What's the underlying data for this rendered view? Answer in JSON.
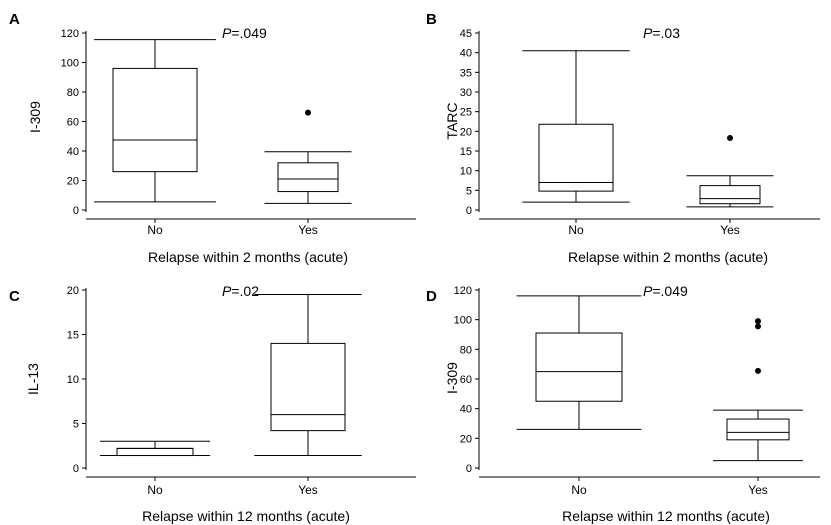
{
  "chart_data": [
    {
      "type": "box",
      "panel_label": "A",
      "title": "",
      "xlabel": "Relapse within 2 months (acute)",
      "ylabel": "I-309",
      "ylim": [
        0,
        120
      ],
      "yticks": [
        0,
        20,
        40,
        60,
        80,
        100,
        120
      ],
      "p_prefix": "P",
      "p_value": "=.049",
      "categories": [
        "No",
        "Yes"
      ],
      "boxes": [
        {
          "category": "No",
          "whisker_low": 5.5,
          "q1": 26,
          "median": 47.5,
          "q3": 96,
          "whisker_high": 115.5,
          "outliers": []
        },
        {
          "category": "Yes",
          "whisker_low": 4.5,
          "q1": 12.5,
          "median": 21,
          "q3": 32,
          "whisker_high": 39.5,
          "outliers": [
            66
          ]
        }
      ]
    },
    {
      "type": "box",
      "panel_label": "B",
      "title": "",
      "xlabel": "Relapse within 2 months (acute)",
      "ylabel": "TARC",
      "ylim": [
        0,
        45
      ],
      "yticks": [
        0,
        5,
        10,
        15,
        20,
        25,
        30,
        35,
        40,
        45
      ],
      "p_prefix": "P",
      "p_value": "=.03",
      "categories": [
        "No",
        "Yes"
      ],
      "boxes": [
        {
          "category": "No",
          "whisker_low": 2,
          "q1": 4.8,
          "median": 7,
          "q3": 21.8,
          "whisker_high": 40.5,
          "outliers": []
        },
        {
          "category": "Yes",
          "whisker_low": 0.8,
          "q1": 1.6,
          "median": 2.9,
          "q3": 6.2,
          "whisker_high": 8.7,
          "outliers": [
            18.3
          ]
        }
      ]
    },
    {
      "type": "box",
      "panel_label": "C",
      "title": "",
      "xlabel": "Relapse within 12 months (acute)",
      "ylabel": "IL-13",
      "ylim": [
        0,
        20
      ],
      "yticks": [
        0,
        5,
        10,
        15,
        20
      ],
      "p_prefix": "P",
      "p_value": "=.02",
      "categories": [
        "No",
        "Yes"
      ],
      "boxes": [
        {
          "category": "No",
          "whisker_low": 1.4,
          "q1": 1.4,
          "median": 2.2,
          "q3": 2.2,
          "whisker_high": 3.0,
          "outliers": []
        },
        {
          "category": "Yes",
          "whisker_low": 1.4,
          "q1": 4.2,
          "median": 6.0,
          "q3": 14.0,
          "whisker_high": 19.5,
          "outliers": []
        }
      ]
    },
    {
      "type": "box",
      "panel_label": "D",
      "title": "",
      "xlabel": "Relapse within 12 months (acute)",
      "ylabel": "I-309",
      "ylim": [
        0,
        120
      ],
      "yticks": [
        0,
        20,
        40,
        60,
        80,
        100,
        120
      ],
      "p_prefix": "P",
      "p_value": "=.049",
      "categories": [
        "No",
        "Yes"
      ],
      "boxes": [
        {
          "category": "No",
          "whisker_low": 26,
          "q1": 45,
          "median": 65,
          "q3": 91,
          "whisker_high": 116,
          "outliers": []
        },
        {
          "category": "Yes",
          "whisker_low": 5,
          "q1": 19,
          "median": 24,
          "q3": 33,
          "whisker_high": 39,
          "outliers": [
            65.5,
            95.5,
            99
          ]
        }
      ]
    }
  ],
  "colors": {
    "ink": "#000000",
    "background": "#ffffff"
  }
}
